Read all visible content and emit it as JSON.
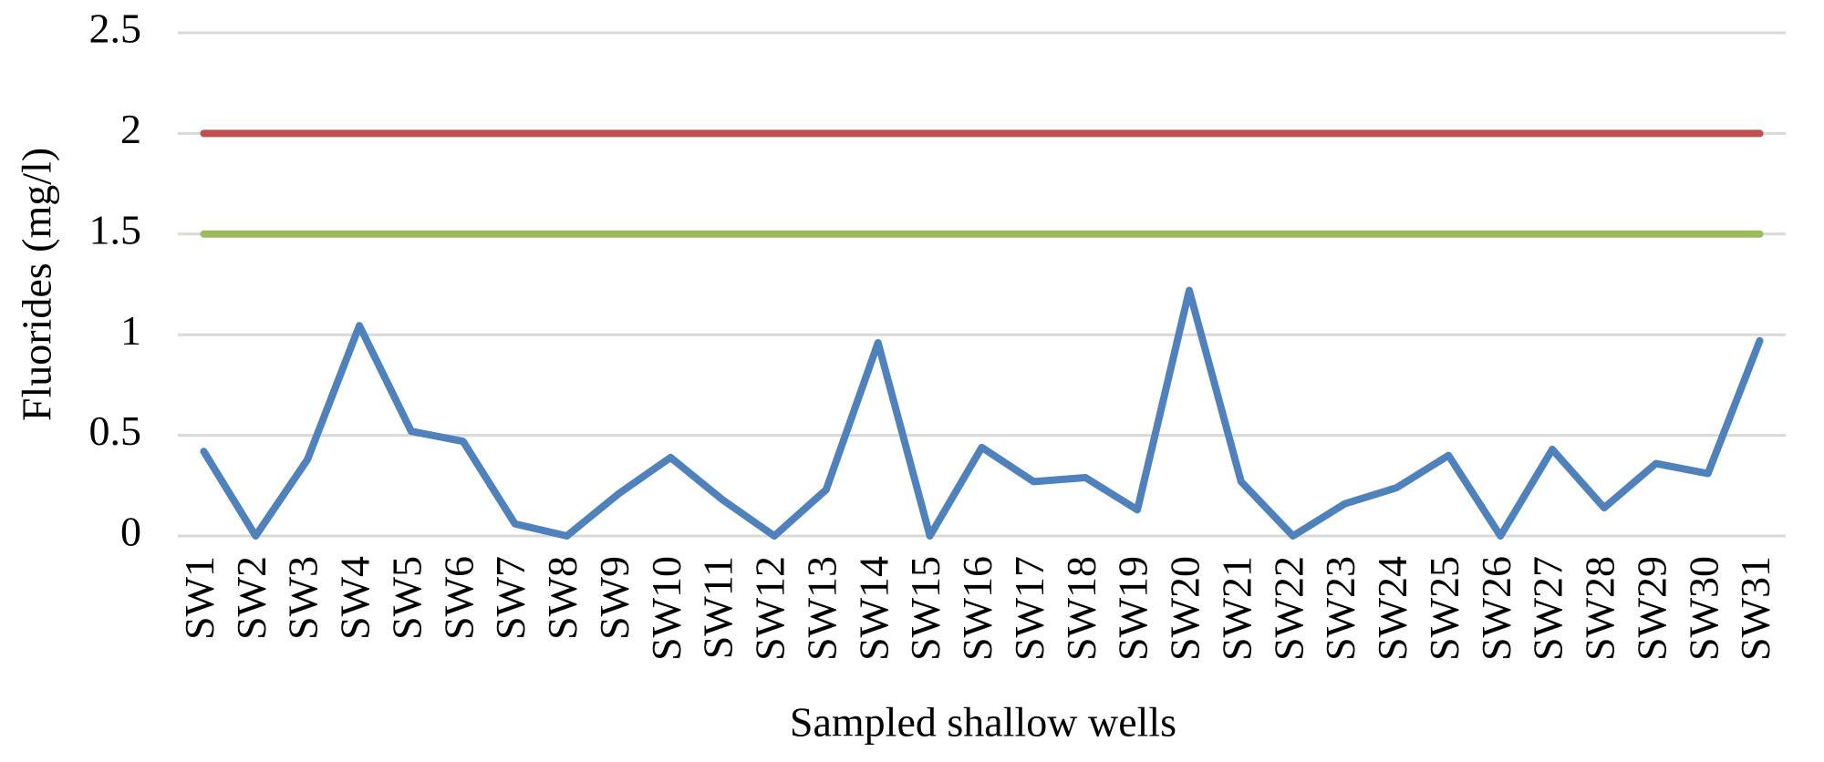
{
  "chart_data": {
    "type": "line",
    "x_label": "Sampled shallow wells",
    "y_label": "Fluorides (mg/l)",
    "categories": [
      "SW1",
      "SW2",
      "SW3",
      "SW4",
      "SW5",
      "SW6",
      "SW7",
      "SW8",
      "SW9",
      "SW10",
      "SW11",
      "SW12",
      "SW13",
      "SW14",
      "SW15",
      "SW16",
      "SW17",
      "SW18",
      "SW19",
      "SW20",
      "SW21",
      "SW22",
      "SW23",
      "SW24",
      "SW25",
      "SW26",
      "SW27",
      "SW28",
      "SW29",
      "SW30",
      "SW31"
    ],
    "series": [
      {
        "color": "#4f81bd",
        "values": [
          0.42,
          0,
          0.38,
          1.045,
          0.52,
          0.47,
          0.06,
          0,
          0.21,
          0.39,
          0.18,
          0,
          0.23,
          0.96,
          0,
          0.44,
          0.27,
          0.29,
          0.13,
          1.22,
          0.27,
          0,
          0.16,
          0.24,
          0.4,
          0,
          0.43,
          0.14,
          0.36,
          0.31,
          0.97
        ]
      },
      {
        "color": "#c0504d",
        "values": [
          2,
          2,
          2,
          2,
          2,
          2,
          2,
          2,
          2,
          2,
          2,
          2,
          2,
          2,
          2,
          2,
          2,
          2,
          2,
          2,
          2,
          2,
          2,
          2,
          2,
          2,
          2,
          2,
          2,
          2,
          2
        ]
      },
      {
        "color": "#9bbb59",
        "values": [
          1.5,
          1.5,
          1.5,
          1.5,
          1.5,
          1.5,
          1.5,
          1.5,
          1.5,
          1.5,
          1.5,
          1.5,
          1.5,
          1.5,
          1.5,
          1.5,
          1.5,
          1.5,
          1.5,
          1.5,
          1.5,
          1.5,
          1.5,
          1.5,
          1.5,
          1.5,
          1.5,
          1.5,
          1.5,
          1.5,
          1.5
        ]
      }
    ],
    "ylim": [
      0,
      2.5
    ],
    "yticks": [
      0,
      0.5,
      1,
      1.5,
      2,
      2.5
    ],
    "grid": true
  }
}
